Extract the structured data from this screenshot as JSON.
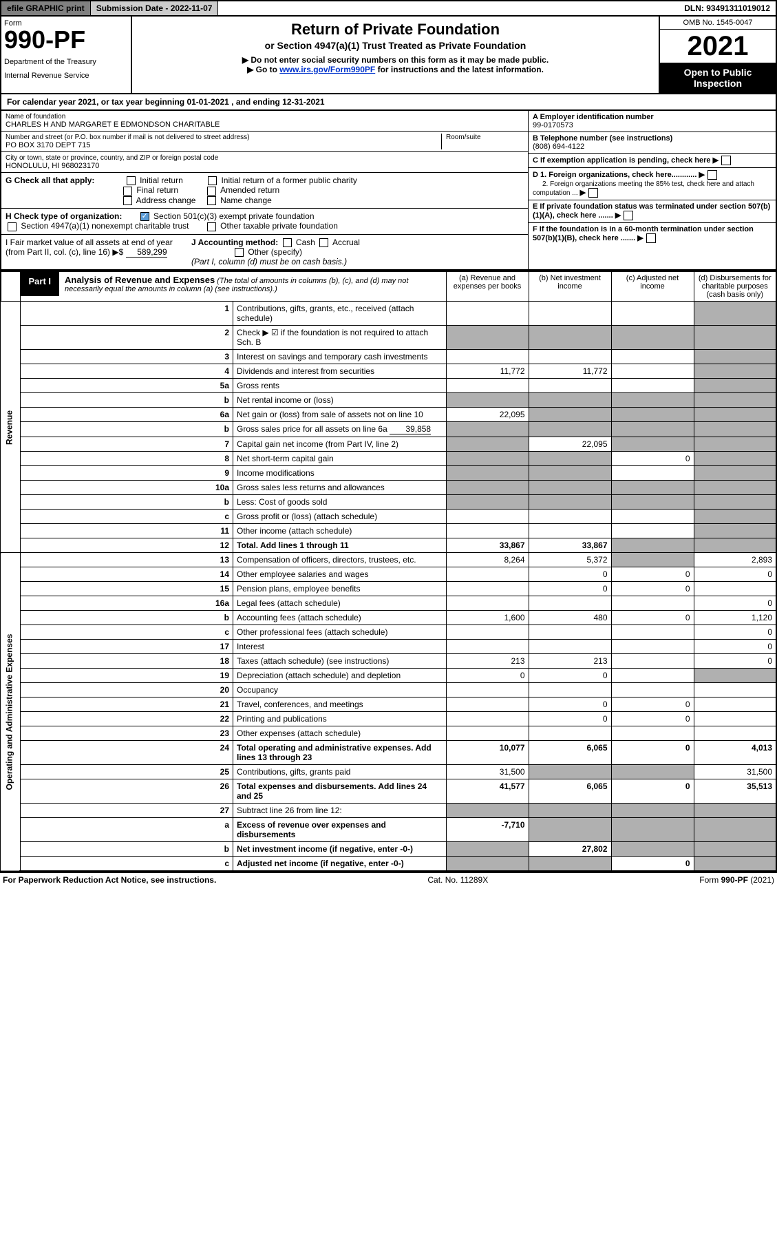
{
  "topbar": {
    "efile": "efile GRAPHIC print",
    "submission": "Submission Date - 2022-11-07",
    "dln": "DLN: 93491311019012"
  },
  "header": {
    "form_label": "Form",
    "form_number": "990-PF",
    "dept1": "Department of the Treasury",
    "dept2": "Internal Revenue Service",
    "title": "Return of Private Foundation",
    "subtitle": "or Section 4947(a)(1) Trust Treated as Private Foundation",
    "inst1": "▶ Do not enter social security numbers on this form as it may be made public.",
    "inst2_pre": "▶ Go to ",
    "inst2_link": "www.irs.gov/Form990PF",
    "inst2_post": " for instructions and the latest information.",
    "omb": "OMB No. 1545-0047",
    "year": "2021",
    "open": "Open to Public Inspection"
  },
  "cal_year": "For calendar year 2021, or tax year beginning 01-01-2021          , and ending 12-31-2021",
  "info": {
    "name_lbl": "Name of foundation",
    "name_val": "CHARLES H AND MARGARET E EDMONDSON CHARITABLE",
    "ein_lbl": "A Employer identification number",
    "ein_val": "99-0170573",
    "addr_lbl": "Number and street (or P.O. box number if mail is not delivered to street address)",
    "addr_val": "PO BOX 3170 DEPT 715",
    "room_lbl": "Room/suite",
    "tel_lbl": "B Telephone number (see instructions)",
    "tel_val": "(808) 694-4122",
    "city_lbl": "City or town, state or province, country, and ZIP or foreign postal code",
    "city_val": "HONOLULU, HI  968023170",
    "c_lbl": "C If exemption application is pending, check here",
    "g_lbl": "G Check all that apply:",
    "g_opts": [
      "Initial return",
      "Initial return of a former public charity",
      "Final return",
      "Amended return",
      "Address change",
      "Name change"
    ],
    "d1": "D 1. Foreign organizations, check here............",
    "d2": "2. Foreign organizations meeting the 85% test, check here and attach computation ...",
    "h_lbl": "H Check type of organization:",
    "h_opt1": "Section 501(c)(3) exempt private foundation",
    "h_opt2": "Section 4947(a)(1) nonexempt charitable trust",
    "h_opt3": "Other taxable private foundation",
    "e_lbl": "E  If private foundation status was terminated under section 507(b)(1)(A), check here .......",
    "i_lbl": "I Fair market value of all assets at end of year (from Part II, col. (c), line 16) ▶$",
    "i_val": "589,299",
    "j_lbl": "J Accounting method:",
    "j_cash": "Cash",
    "j_accrual": "Accrual",
    "j_other": "Other (specify)",
    "j_note": "(Part I, column (d) must be on cash basis.)",
    "f_lbl": "F  If the foundation is in a 60-month termination under section 507(b)(1)(B), check here ......."
  },
  "part1": {
    "label": "Part I",
    "title": "Analysis of Revenue and Expenses",
    "note": "(The total of amounts in columns (b), (c), and (d) may not necessarily equal the amounts in column (a) (see instructions).)",
    "col_a": "(a)  Revenue and expenses per books",
    "col_b": "(b)  Net investment income",
    "col_c": "(c)  Adjusted net income",
    "col_d": "(d)  Disbursements for charitable purposes (cash basis only)"
  },
  "side": {
    "revenue": "Revenue",
    "expenses": "Operating and Administrative Expenses"
  },
  "rows": {
    "r1": {
      "n": "1",
      "d": "Contributions, gifts, grants, etc., received (attach schedule)"
    },
    "r2": {
      "n": "2",
      "d": "Check ▶ ☑ if the foundation is not required to attach Sch. B"
    },
    "r3": {
      "n": "3",
      "d": "Interest on savings and temporary cash investments"
    },
    "r4": {
      "n": "4",
      "d": "Dividends and interest from securities",
      "a": "11,772",
      "b": "11,772"
    },
    "r5a": {
      "n": "5a",
      "d": "Gross rents"
    },
    "r5b": {
      "n": "b",
      "d": "Net rental income or (loss)"
    },
    "r6a": {
      "n": "6a",
      "d": "Net gain or (loss) from sale of assets not on line 10",
      "a": "22,095"
    },
    "r6b": {
      "n": "b",
      "d": "Gross sales price for all assets on line 6a",
      "inline": "39,858"
    },
    "r7": {
      "n": "7",
      "d": "Capital gain net income (from Part IV, line 2)",
      "b": "22,095"
    },
    "r8": {
      "n": "8",
      "d": "Net short-term capital gain",
      "c": "0"
    },
    "r9": {
      "n": "9",
      "d": "Income modifications"
    },
    "r10a": {
      "n": "10a",
      "d": "Gross sales less returns and allowances"
    },
    "r10b": {
      "n": "b",
      "d": "Less: Cost of goods sold"
    },
    "r10c": {
      "n": "c",
      "d": "Gross profit or (loss) (attach schedule)"
    },
    "r11": {
      "n": "11",
      "d": "Other income (attach schedule)"
    },
    "r12": {
      "n": "12",
      "d": "Total. Add lines 1 through 11",
      "a": "33,867",
      "b": "33,867"
    },
    "r13": {
      "n": "13",
      "d": "Compensation of officers, directors, trustees, etc.",
      "a": "8,264",
      "b": "5,372",
      "dd": "2,893"
    },
    "r14": {
      "n": "14",
      "d": "Other employee salaries and wages",
      "b": "0",
      "c": "0",
      "dd": "0"
    },
    "r15": {
      "n": "15",
      "d": "Pension plans, employee benefits",
      "b": "0",
      "c": "0"
    },
    "r16a": {
      "n": "16a",
      "d": "Legal fees (attach schedule)",
      "dd": "0"
    },
    "r16b": {
      "n": "b",
      "d": "Accounting fees (attach schedule)",
      "a": "1,600",
      "b": "480",
      "c": "0",
      "dd": "1,120"
    },
    "r16c": {
      "n": "c",
      "d": "Other professional fees (attach schedule)",
      "dd": "0"
    },
    "r17": {
      "n": "17",
      "d": "Interest",
      "dd": "0"
    },
    "r18": {
      "n": "18",
      "d": "Taxes (attach schedule) (see instructions)",
      "a": "213",
      "b": "213",
      "dd": "0"
    },
    "r19": {
      "n": "19",
      "d": "Depreciation (attach schedule) and depletion",
      "a": "0",
      "b": "0"
    },
    "r20": {
      "n": "20",
      "d": "Occupancy"
    },
    "r21": {
      "n": "21",
      "d": "Travel, conferences, and meetings",
      "b": "0",
      "c": "0"
    },
    "r22": {
      "n": "22",
      "d": "Printing and publications",
      "b": "0",
      "c": "0"
    },
    "r23": {
      "n": "23",
      "d": "Other expenses (attach schedule)"
    },
    "r24": {
      "n": "24",
      "d": "Total operating and administrative expenses. Add lines 13 through 23",
      "a": "10,077",
      "b": "6,065",
      "c": "0",
      "dd": "4,013"
    },
    "r25": {
      "n": "25",
      "d": "Contributions, gifts, grants paid",
      "a": "31,500",
      "dd": "31,500"
    },
    "r26": {
      "n": "26",
      "d": "Total expenses and disbursements. Add lines 24 and 25",
      "a": "41,577",
      "b": "6,065",
      "c": "0",
      "dd": "35,513"
    },
    "r27": {
      "n": "27",
      "d": "Subtract line 26 from line 12:"
    },
    "r27a": {
      "n": "a",
      "d": "Excess of revenue over expenses and disbursements",
      "a": "-7,710"
    },
    "r27b": {
      "n": "b",
      "d": "Net investment income (if negative, enter -0-)",
      "b": "27,802"
    },
    "r27c": {
      "n": "c",
      "d": "Adjusted net income (if negative, enter -0-)",
      "c": "0"
    }
  },
  "footer": {
    "left": "For Paperwork Reduction Act Notice, see instructions.",
    "center": "Cat. No. 11289X",
    "right": "Form 990-PF (2021)"
  }
}
